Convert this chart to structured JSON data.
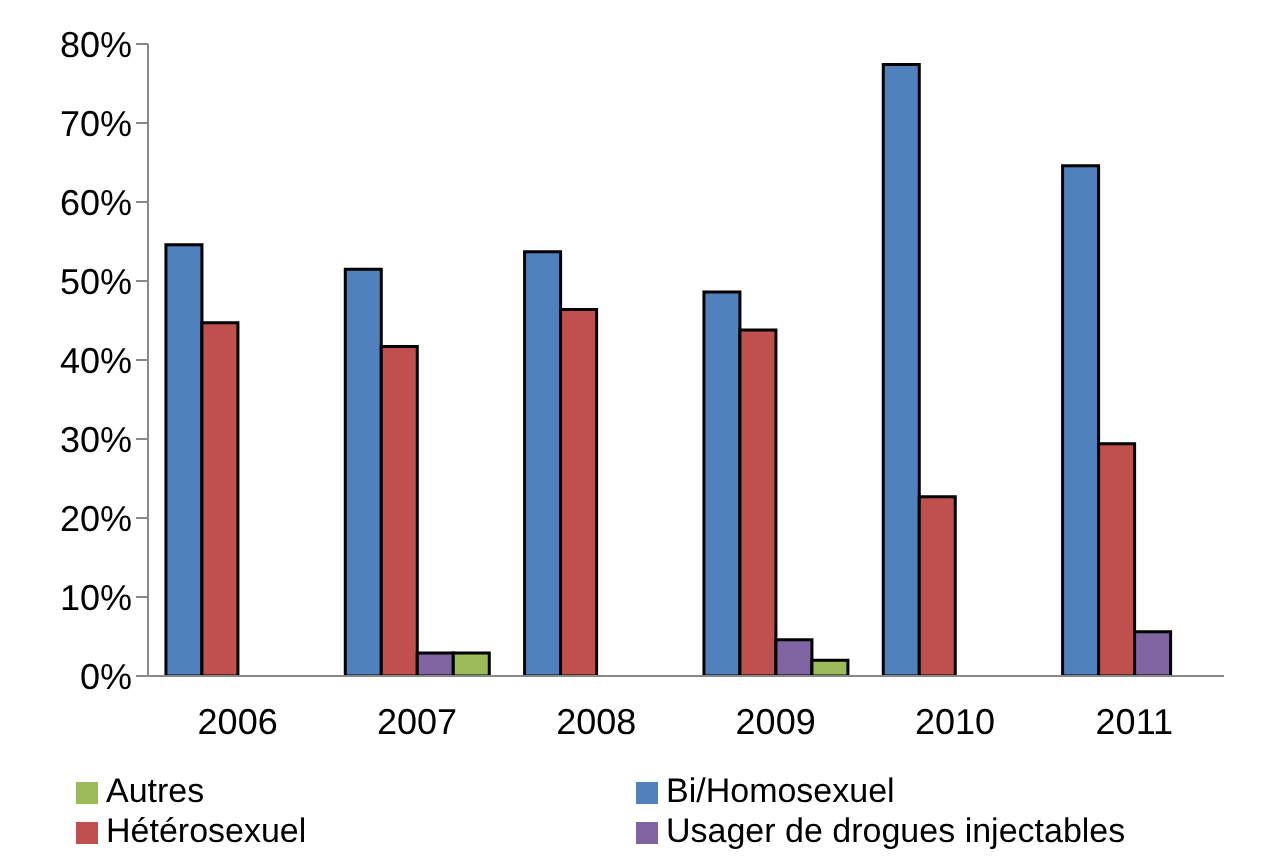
{
  "chart_data": {
    "type": "bar",
    "categories": [
      "2006",
      "2007",
      "2008",
      "2009",
      "2010",
      "2011"
    ],
    "series": [
      {
        "name": "Bi/Homosexuel",
        "color": "#4f81bd",
        "values": [
          54.6,
          51.5,
          53.7,
          48.6,
          77.4,
          64.6
        ]
      },
      {
        "name": "Hétérosexuel",
        "color": "#c0504d",
        "values": [
          44.7,
          41.7,
          46.4,
          43.8,
          22.7,
          29.4
        ]
      },
      {
        "name": "Usager de drogues injectables",
        "color": "#8064a2",
        "values": [
          null,
          2.9,
          null,
          4.6,
          null,
          5.6
        ]
      },
      {
        "name": "Autres",
        "color": "#9bbb59",
        "values": [
          null,
          2.9,
          null,
          2.0,
          null,
          null
        ]
      }
    ],
    "ylim": [
      0,
      80
    ],
    "yticks": [
      {
        "value": 0,
        "label": "0%"
      },
      {
        "value": 10,
        "label": "10%"
      },
      {
        "value": 20,
        "label": "20%"
      },
      {
        "value": 30,
        "label": "30%"
      },
      {
        "value": 40,
        "label": "40%"
      },
      {
        "value": 50,
        "label": "50%"
      },
      {
        "value": 60,
        "label": "60%"
      },
      {
        "value": 70,
        "label": "70%"
      },
      {
        "value": 80,
        "label": "80%"
      }
    ],
    "grid": false,
    "legend": "bottom"
  }
}
